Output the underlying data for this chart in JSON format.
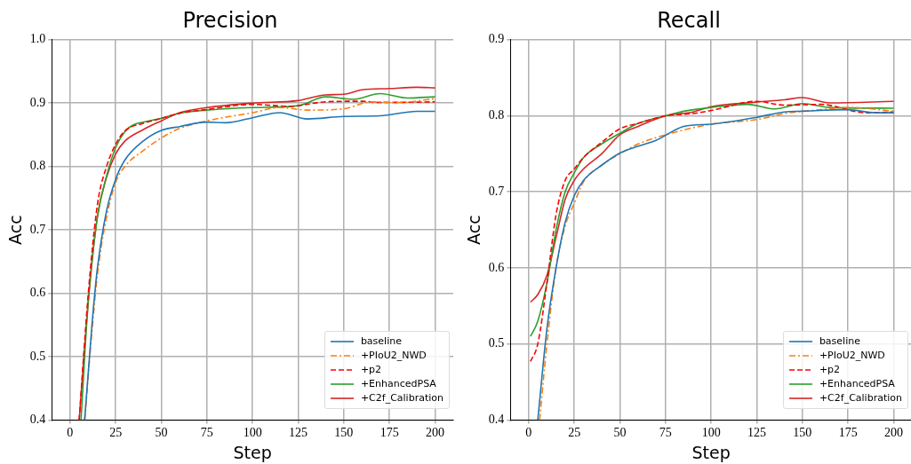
{
  "chart_data": [
    {
      "type": "line",
      "title": "Precision",
      "xlabel": "Step",
      "ylabel": "Acc",
      "xlim": [
        -10,
        210
      ],
      "ylim": [
        0.4,
        1.0
      ],
      "xticks": [
        0,
        25,
        50,
        75,
        100,
        125,
        150,
        175,
        200
      ],
      "yticks": [
        0.4,
        0.5,
        0.6,
        0.7,
        0.8,
        0.9,
        {
          "value": 1.0,
          "label": "1.0"
        }
      ],
      "grid": true,
      "legend": "bottom right",
      "series": [
        {
          "name": "baseline",
          "color": "#1f77b4",
          "line_style": "solid",
          "x": [
            8,
            12,
            15,
            20,
            25,
            30,
            40,
            50,
            60,
            75,
            85,
            100,
            115,
            130,
            150,
            170,
            190,
            200
          ],
          "values": [
            0.4,
            0.55,
            0.64,
            0.73,
            0.78,
            0.81,
            0.84,
            0.857,
            0.863,
            0.87,
            0.869,
            0.877,
            0.885,
            0.875,
            0.879,
            0.88,
            0.887,
            0.887
          ]
        },
        {
          "name": "+PIoU2_NWD",
          "color": "#ff7f0e",
          "line_style": "dashdot",
          "x": [
            8,
            12,
            15,
            20,
            25,
            30,
            40,
            50,
            60,
            75,
            100,
            115,
            130,
            150,
            165,
            180,
            200
          ],
          "values": [
            0.4,
            0.54,
            0.63,
            0.72,
            0.775,
            0.8,
            0.825,
            0.845,
            0.86,
            0.872,
            0.885,
            0.893,
            0.889,
            0.891,
            0.902,
            0.901,
            0.907
          ]
        },
        {
          "name": "+p2",
          "color": "#ff0000",
          "line_style": "dashed",
          "x": [
            5,
            10,
            15,
            20,
            25,
            30,
            40,
            50,
            60,
            75,
            100,
            120,
            140,
            160,
            170,
            200
          ],
          "values": [
            0.4,
            0.6,
            0.74,
            0.8,
            0.835,
            0.856,
            0.868,
            0.876,
            0.884,
            0.89,
            0.898,
            0.895,
            0.902,
            0.903,
            0.901,
            0.902
          ]
        },
        {
          "name": "+EnhancedPSA",
          "color": "#2ca02c",
          "line_style": "solid",
          "x": [
            6,
            10,
            15,
            20,
            25,
            30,
            35,
            40,
            50,
            60,
            75,
            100,
            125,
            140,
            155,
            170,
            185,
            200
          ],
          "values": [
            0.4,
            0.59,
            0.72,
            0.785,
            0.83,
            0.855,
            0.866,
            0.87,
            0.876,
            0.884,
            0.889,
            0.893,
            0.896,
            0.91,
            0.906,
            0.915,
            0.908,
            0.91
          ]
        },
        {
          "name": "+C2f_Calibration",
          "color": "#d62728",
          "line_style": "solid",
          "x": [
            5,
            10,
            15,
            20,
            25,
            30,
            40,
            50,
            60,
            75,
            100,
            125,
            140,
            150,
            160,
            175,
            190,
            200
          ],
          "values": [
            0.4,
            0.587,
            0.722,
            0.783,
            0.82,
            0.84,
            0.858,
            0.872,
            0.885,
            0.893,
            0.9,
            0.904,
            0.913,
            0.914,
            0.921,
            0.923,
            0.925,
            0.924
          ]
        }
      ]
    },
    {
      "type": "line",
      "title": "Recall",
      "xlabel": "Step",
      "ylabel": "Acc",
      "xlim": [
        -10,
        210
      ],
      "ylim": [
        0.4,
        0.9
      ],
      "xticks": [
        0,
        25,
        50,
        75,
        100,
        125,
        150,
        175,
        200
      ],
      "yticks": [
        0.4,
        0.5,
        0.6,
        0.7,
        0.8,
        0.9
      ],
      "grid": true,
      "legend": "bottom right",
      "series": [
        {
          "name": "baseline",
          "color": "#1f77b4",
          "line_style": "solid",
          "x": [
            5,
            10,
            15,
            20,
            25,
            30,
            40,
            50,
            60,
            70,
            85,
            100,
            125,
            140,
            150,
            175,
            190,
            200
          ],
          "values": [
            0.4,
            0.52,
            0.6,
            0.66,
            0.695,
            0.715,
            0.735,
            0.751,
            0.76,
            0.768,
            0.786,
            0.789,
            0.798,
            0.805,
            0.806,
            0.808,
            0.804,
            0.804
          ]
        },
        {
          "name": "+PIoU2_NWD",
          "color": "#ff7f0e",
          "line_style": "dashdot",
          "x": [
            6,
            10,
            15,
            20,
            25,
            30,
            40,
            50,
            60,
            75,
            100,
            125,
            140,
            160,
            175,
            200
          ],
          "values": [
            0.4,
            0.5,
            0.6,
            0.655,
            0.685,
            0.713,
            0.735,
            0.75,
            0.763,
            0.775,
            0.789,
            0.795,
            0.803,
            0.808,
            0.811,
            0.806
          ]
        },
        {
          "name": "+p2",
          "color": "#ff0000",
          "line_style": "dashed",
          "x": [
            1,
            5,
            10,
            15,
            20,
            25,
            30,
            40,
            50,
            60,
            75,
            90,
            100,
            125,
            140,
            160,
            185,
            200
          ],
          "values": [
            0.477,
            0.5,
            0.58,
            0.67,
            0.715,
            0.73,
            0.745,
            0.765,
            0.783,
            0.79,
            0.8,
            0.803,
            0.807,
            0.819,
            0.814,
            0.815,
            0.804,
            0.805
          ]
        },
        {
          "name": "+EnhancedPSA",
          "color": "#2ca02c",
          "line_style": "solid",
          "x": [
            1,
            5,
            10,
            15,
            20,
            25,
            30,
            40,
            50,
            60,
            75,
            85,
            100,
            120,
            135,
            150,
            165,
            200
          ],
          "values": [
            0.51,
            0.53,
            0.58,
            0.65,
            0.7,
            0.725,
            0.745,
            0.763,
            0.777,
            0.79,
            0.8,
            0.806,
            0.811,
            0.815,
            0.809,
            0.816,
            0.811,
            0.81
          ]
        },
        {
          "name": "+C2f_Calibration",
          "color": "#d62728",
          "line_style": "solid",
          "x": [
            1,
            5,
            10,
            15,
            20,
            25,
            30,
            40,
            50,
            60,
            75,
            90,
            100,
            125,
            140,
            150,
            165,
            200
          ],
          "values": [
            0.555,
            0.565,
            0.59,
            0.64,
            0.69,
            0.715,
            0.73,
            0.75,
            0.775,
            0.786,
            0.8,
            0.805,
            0.812,
            0.818,
            0.821,
            0.824,
            0.817,
            0.819
          ]
        }
      ]
    }
  ]
}
